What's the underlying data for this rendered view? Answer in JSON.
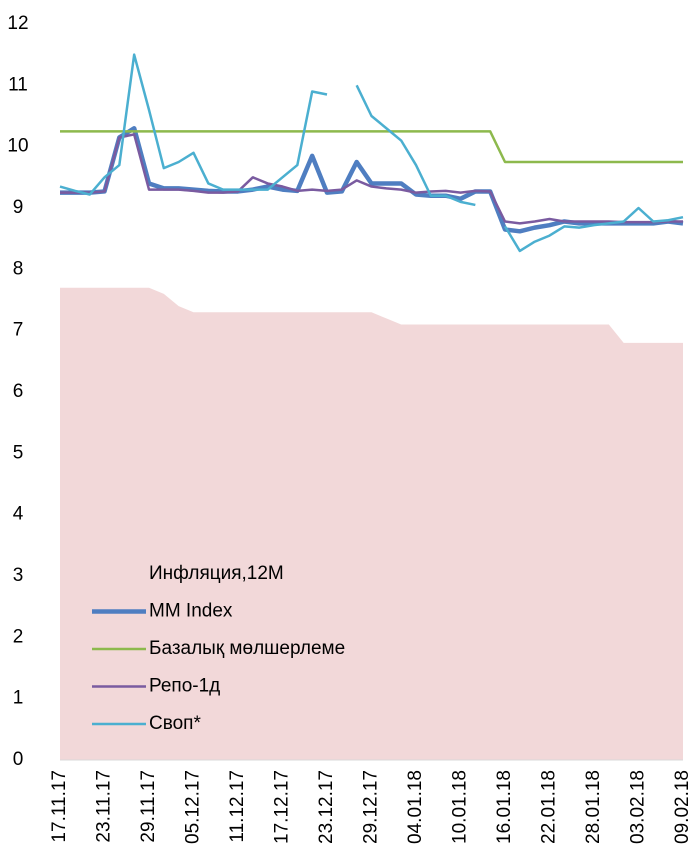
{
  "chart_data": {
    "type": "line",
    "categories": [
      "17.11.17",
      null,
      null,
      "23.11.17",
      null,
      null,
      "29.11.17",
      null,
      null,
      "05.12.17",
      null,
      null,
      "11.12.17",
      null,
      null,
      "17.12.17",
      null,
      null,
      "23.12.17",
      null,
      null,
      "29.12.17",
      null,
      null,
      "04.01.18",
      null,
      null,
      "10.01.18",
      null,
      null,
      "16.01.18",
      null,
      null,
      "22.01.18",
      null,
      null,
      "28.01.18",
      null,
      null,
      "03.02.18",
      null,
      null,
      "09.02.18"
    ],
    "ylim": [
      0,
      12
    ],
    "yticks": [
      0,
      1,
      2,
      3,
      4,
      5,
      6,
      7,
      8,
      9,
      10,
      11,
      12
    ],
    "grid": false,
    "legend": "bottom-left",
    "series": [
      {
        "name": "Инфляция,12М",
        "type": "area",
        "color": "#f2d8d9",
        "values": [
          7.7,
          7.7,
          7.7,
          7.7,
          7.7,
          7.7,
          7.7,
          7.6,
          7.4,
          7.3,
          7.3,
          7.3,
          7.3,
          7.3,
          7.3,
          7.3,
          7.3,
          7.3,
          7.3,
          7.3,
          7.3,
          7.3,
          7.2,
          7.1,
          7.1,
          7.1,
          7.1,
          7.1,
          7.1,
          7.1,
          7.1,
          7.1,
          7.1,
          7.1,
          7.1,
          7.1,
          7.1,
          7.1,
          6.8,
          6.8,
          6.8,
          6.8,
          6.8
        ]
      },
      {
        "name": "MM Index",
        "type": "line",
        "color": "#4f7ec1",
        "values": [
          9.25,
          9.25,
          9.25,
          9.27,
          10.15,
          10.3,
          9.4,
          9.32,
          9.32,
          9.3,
          9.28,
          9.27,
          9.27,
          9.3,
          9.35,
          9.3,
          9.28,
          9.85,
          9.25,
          9.27,
          9.75,
          9.4,
          9.4,
          9.4,
          9.22,
          9.2,
          9.2,
          9.15,
          9.27,
          9.27,
          8.65,
          8.62,
          8.68,
          8.72,
          8.78,
          8.75,
          8.75,
          8.75,
          8.75,
          8.75,
          8.75,
          8.78,
          8.75
        ]
      },
      {
        "name": "Базалық мөлшерлеме",
        "type": "line",
        "color": "#8db94d",
        "values": [
          10.25,
          10.25,
          10.25,
          10.25,
          10.25,
          10.25,
          10.25,
          10.25,
          10.25,
          10.25,
          10.25,
          10.25,
          10.25,
          10.25,
          10.25,
          10.25,
          10.25,
          10.25,
          10.25,
          10.25,
          10.25,
          10.25,
          10.25,
          10.25,
          10.25,
          10.25,
          10.25,
          10.25,
          10.25,
          10.25,
          9.75,
          9.75,
          9.75,
          9.75,
          9.75,
          9.75,
          9.75,
          9.75,
          9.75,
          9.75,
          9.75,
          9.75,
          9.75
        ]
      },
      {
        "name": "Репо-1д",
        "type": "line",
        "color": "#7a5ba0",
        "values": [
          9.25,
          9.25,
          9.25,
          9.27,
          10.15,
          10.2,
          9.3,
          9.3,
          9.3,
          9.28,
          9.25,
          9.25,
          9.27,
          9.5,
          9.4,
          9.35,
          9.28,
          9.3,
          9.28,
          9.3,
          9.45,
          9.35,
          9.32,
          9.3,
          9.25,
          9.27,
          9.28,
          9.25,
          9.28,
          9.27,
          8.78,
          8.75,
          8.78,
          8.82,
          8.78,
          8.78,
          8.78,
          8.78,
          8.77,
          8.77,
          8.77,
          8.78,
          8.78
        ]
      },
      {
        "name": "Своп*",
        "type": "line",
        "color": "#4bafd0",
        "values": [
          9.35,
          9.28,
          9.22,
          9.5,
          9.7,
          11.5,
          10.6,
          9.65,
          9.75,
          9.9,
          9.4,
          9.3,
          9.3,
          9.3,
          9.3,
          9.5,
          9.7,
          10.9,
          10.85,
          null,
          11.0,
          10.5,
          10.3,
          10.1,
          9.7,
          9.2,
          9.2,
          9.1,
          9.05,
          null,
          8.7,
          8.3,
          8.45,
          8.55,
          8.7,
          8.68,
          8.72,
          8.75,
          8.78,
          9.0,
          8.78,
          8.8,
          8.85
        ]
      }
    ]
  }
}
